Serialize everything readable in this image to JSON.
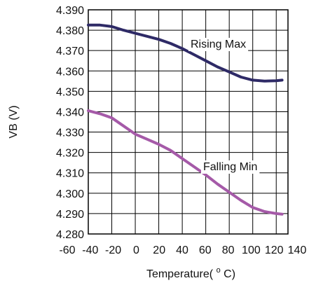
{
  "chart_data": {
    "type": "line",
    "title": "",
    "xlabel": "Temperature(°C)",
    "xlabel_parts": {
      "prefix": "Temperature(",
      "superscript": "o",
      "suffix": "C)"
    },
    "ylabel": "VB (V)",
    "xlim": [
      -60,
      140
    ],
    "ylim": [
      4.28,
      4.39
    ],
    "x_ticks": [
      -60,
      -40,
      -20,
      0,
      20,
      40,
      60,
      80,
      100,
      120,
      140
    ],
    "y_ticks": [
      4.28,
      4.29,
      4.3,
      4.31,
      4.32,
      4.33,
      4.34,
      4.35,
      4.36,
      4.37,
      4.38,
      4.39
    ],
    "y_tick_labels": [
      "4.280",
      "4.290",
      "4.300",
      "4.310",
      "4.320",
      "4.330",
      "4.340",
      "4.350",
      "4.360",
      "4.370",
      "4.380",
      "4.390"
    ],
    "grid": true,
    "plot_x_range": [
      -40,
      130
    ],
    "series": [
      {
        "name": "Rising Max",
        "color": "#2e2a66",
        "x": [
          -40,
          -30,
          -20,
          -10,
          0,
          10,
          20,
          30,
          40,
          50,
          60,
          70,
          80,
          90,
          100,
          110,
          120,
          125
        ],
        "y": [
          4.3825,
          4.3825,
          4.3818,
          4.38,
          4.3785,
          4.377,
          4.3755,
          4.3735,
          4.371,
          4.368,
          4.365,
          4.362,
          4.3595,
          4.357,
          4.3555,
          4.355,
          4.3552,
          4.3555
        ]
      },
      {
        "name": "Falling Min",
        "color": "#a55aa8",
        "x": [
          -40,
          -30,
          -20,
          -10,
          0,
          10,
          20,
          30,
          40,
          50,
          60,
          70,
          80,
          90,
          100,
          110,
          120,
          125
        ],
        "y": [
          4.3405,
          4.339,
          4.337,
          4.333,
          4.329,
          4.3265,
          4.324,
          4.321,
          4.317,
          4.313,
          4.309,
          4.3045,
          4.3005,
          4.2965,
          4.293,
          4.291,
          4.29,
          4.2897
        ]
      }
    ]
  }
}
